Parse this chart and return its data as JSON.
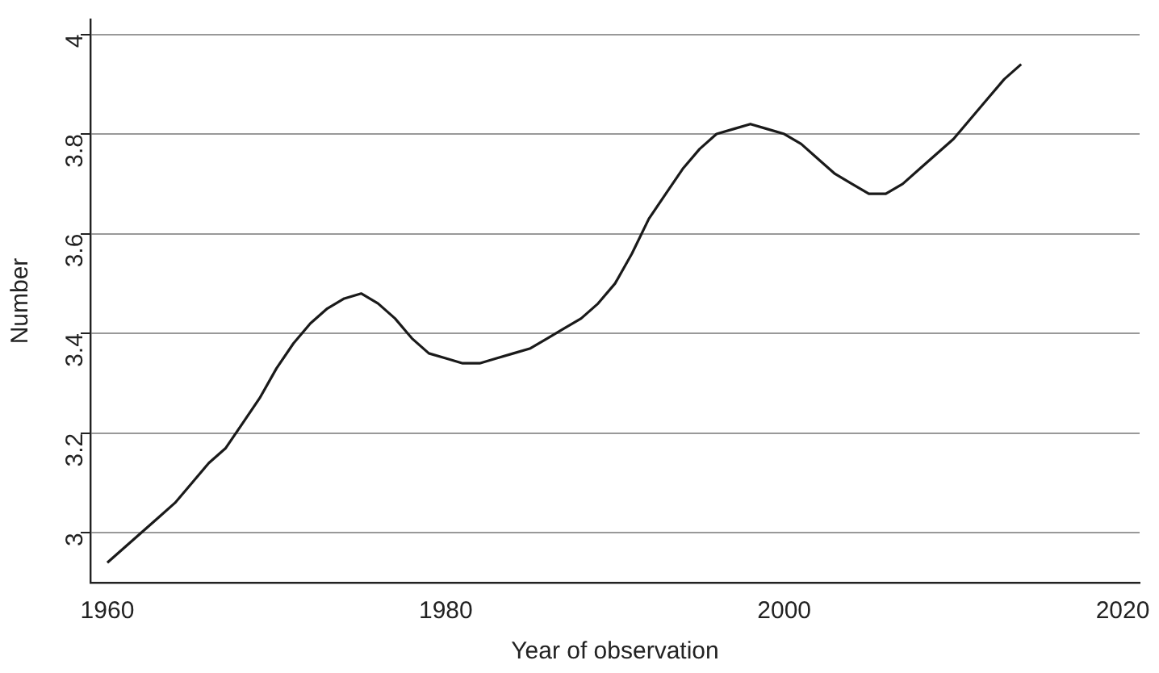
{
  "chart_data": {
    "type": "line",
    "xlabel": "Year of observation",
    "ylabel": "Number",
    "x": [
      1960,
      1961,
      1962,
      1963,
      1964,
      1965,
      1966,
      1967,
      1968,
      1969,
      1970,
      1971,
      1972,
      1973,
      1974,
      1975,
      1976,
      1977,
      1978,
      1979,
      1980,
      1981,
      1982,
      1983,
      1984,
      1985,
      1986,
      1987,
      1988,
      1989,
      1990,
      1991,
      1992,
      1993,
      1994,
      1995,
      1996,
      1997,
      1998,
      1999,
      2000,
      2001,
      2002,
      2003,
      2004,
      2005,
      2006,
      2007,
      2008,
      2009,
      2010,
      2011,
      2012,
      2013,
      2014
    ],
    "series": [
      {
        "color": "#1a1a1a",
        "values": [
          2.94,
          2.97,
          3.0,
          3.03,
          3.06,
          3.1,
          3.14,
          3.17,
          3.22,
          3.27,
          3.33,
          3.38,
          3.42,
          3.45,
          3.47,
          3.48,
          3.46,
          3.43,
          3.39,
          3.36,
          3.35,
          3.34,
          3.34,
          3.35,
          3.36,
          3.37,
          3.39,
          3.41,
          3.43,
          3.46,
          3.5,
          3.56,
          3.63,
          3.68,
          3.73,
          3.77,
          3.8,
          3.81,
          3.82,
          3.81,
          3.8,
          3.78,
          3.75,
          3.72,
          3.7,
          3.68,
          3.68,
          3.7,
          3.73,
          3.76,
          3.79,
          3.83,
          3.87,
          3.91,
          3.94
        ]
      }
    ],
    "xlim": [
      1959,
      2021
    ],
    "xticks": [
      1960,
      1980,
      2000,
      2020
    ],
    "ylim": [
      2.9,
      4.03
    ],
    "yticks": [
      3,
      3.2,
      3.4,
      3.6,
      3.8,
      4
    ],
    "grid": "y",
    "legend": false,
    "marker": "none",
    "line_style": "solid"
  }
}
